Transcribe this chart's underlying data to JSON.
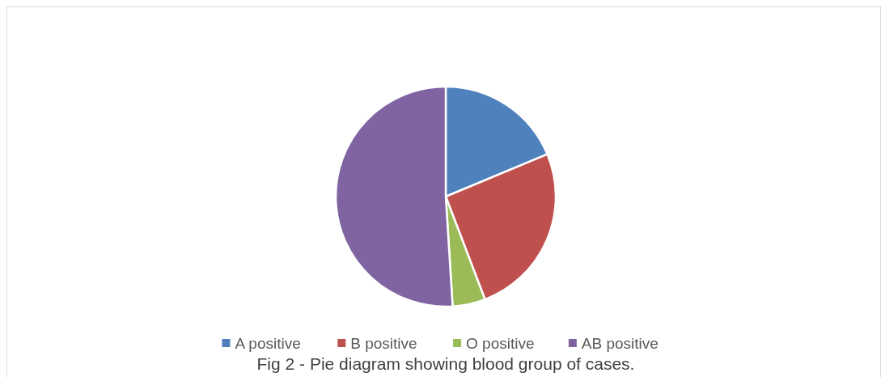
{
  "chart_data": {
    "type": "pie",
    "categories": [
      "A positive",
      "B positive",
      "O positive",
      "AB positive"
    ],
    "values": [
      18.7,
      25.5,
      4.8,
      51.0
    ],
    "colors": [
      "#4f81bd",
      "#c0504d",
      "#9bbb59",
      "#8064a2"
    ],
    "legend": "bottom",
    "annotations": [
      "Fig 2 - Pie diagram showing blood group of cases."
    ]
  }
}
